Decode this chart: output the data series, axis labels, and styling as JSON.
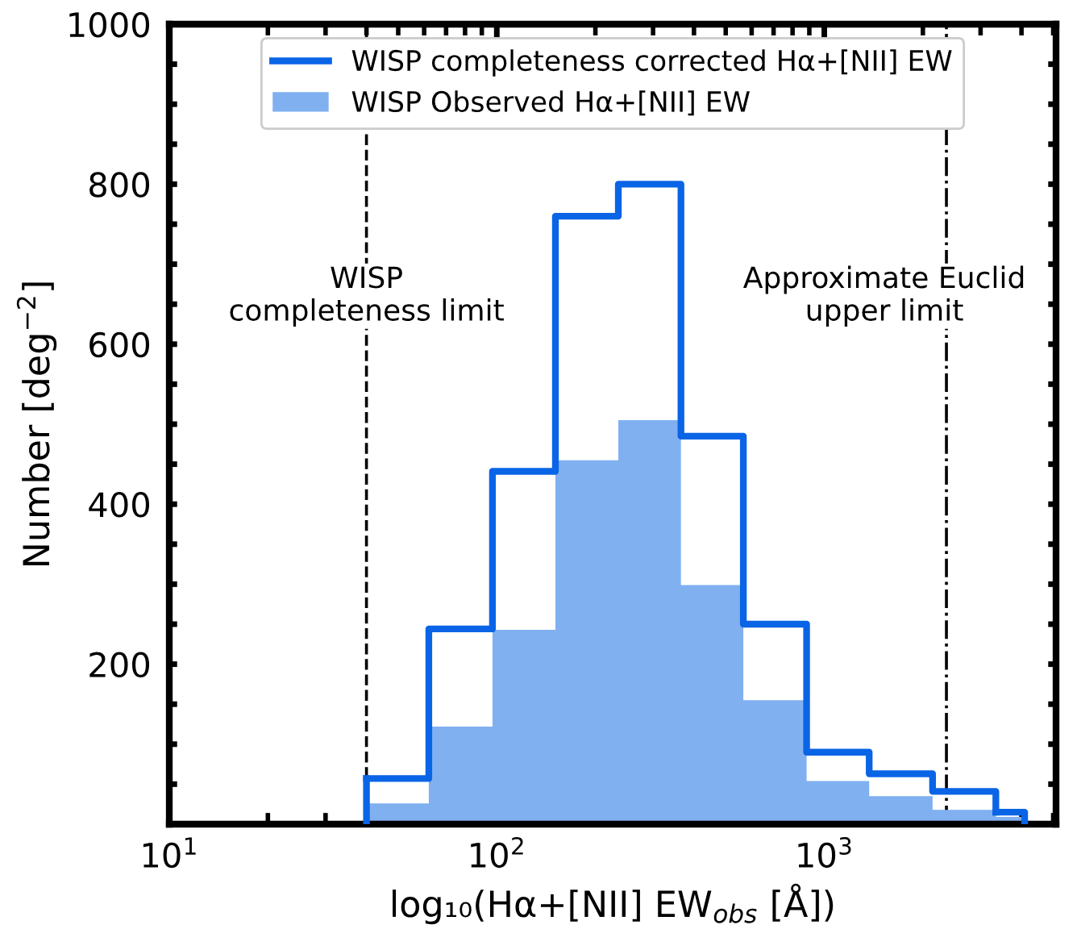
{
  "chart_data": {
    "type": "histogram",
    "bins": [
      40,
      62,
      97,
      151,
      235,
      365,
      566,
      883,
      1371,
      2141,
      3340,
      4090
    ],
    "series": [
      {
        "name": "WISP completeness corrected Hα+[NII] EW",
        "type": "step",
        "color": "#0a64e6",
        "x": [
          40,
          62,
          97,
          151,
          235,
          365,
          566,
          883,
          1371,
          2141,
          3340
        ],
        "values": [
          57,
          244,
          441,
          760,
          800,
          485,
          250,
          90,
          63,
          41,
          15
        ]
      },
      {
        "name": "WISP Observed Hα+[NII] EW",
        "color": "#80b0f0",
        "values": [
          26,
          122,
          243,
          455,
          505,
          299,
          155,
          54,
          35,
          18,
          9
        ]
      }
    ],
    "xlabel": "log₁₀(Hα+[NII] EW$_{obs}$ [Å])",
    "ylabel": "Number [deg$^{−2}$]",
    "log": "x",
    "xlim": [
      10,
      5100
    ],
    "xticks": [
      {
        "value": 10,
        "label": "10$^{1}$"
      },
      {
        "value": 100,
        "label": "10$^{2}$"
      },
      {
        "value": 1000,
        "label": "10$^{3}$"
      }
    ],
    "ylim": [
      0,
      1000
    ],
    "yticks": [
      {
        "value": 50,
        "label": null
      },
      {
        "value": 100,
        "label": null
      },
      {
        "value": 150,
        "label": null
      },
      200,
      {
        "value": 250,
        "label": null
      },
      {
        "value": 300,
        "label": null
      },
      {
        "value": 350,
        "label": null
      },
      400,
      {
        "value": 450,
        "label": null
      },
      {
        "value": 500,
        "label": null
      },
      {
        "value": 550,
        "label": null
      },
      600,
      {
        "value": 650,
        "label": null
      },
      {
        "value": 700,
        "label": null
      },
      {
        "value": 750,
        "label": null
      },
      800,
      {
        "value": 850,
        "label": null
      },
      {
        "value": 900,
        "label": null
      },
      {
        "value": 950,
        "label": null
      },
      1000
    ],
    "ref_lines": [
      {
        "axis": "x",
        "value": 40,
        "label": "WISP\ncompleteness limit",
        "line_style": "dashed",
        "color": "#000000"
      },
      {
        "axis": "x",
        "value": 2360,
        "label": "Approximate Euclid\nupper limit",
        "line_style": "dashdot",
        "color": "#000000"
      }
    ],
    "legend": "top",
    "grid": false
  }
}
